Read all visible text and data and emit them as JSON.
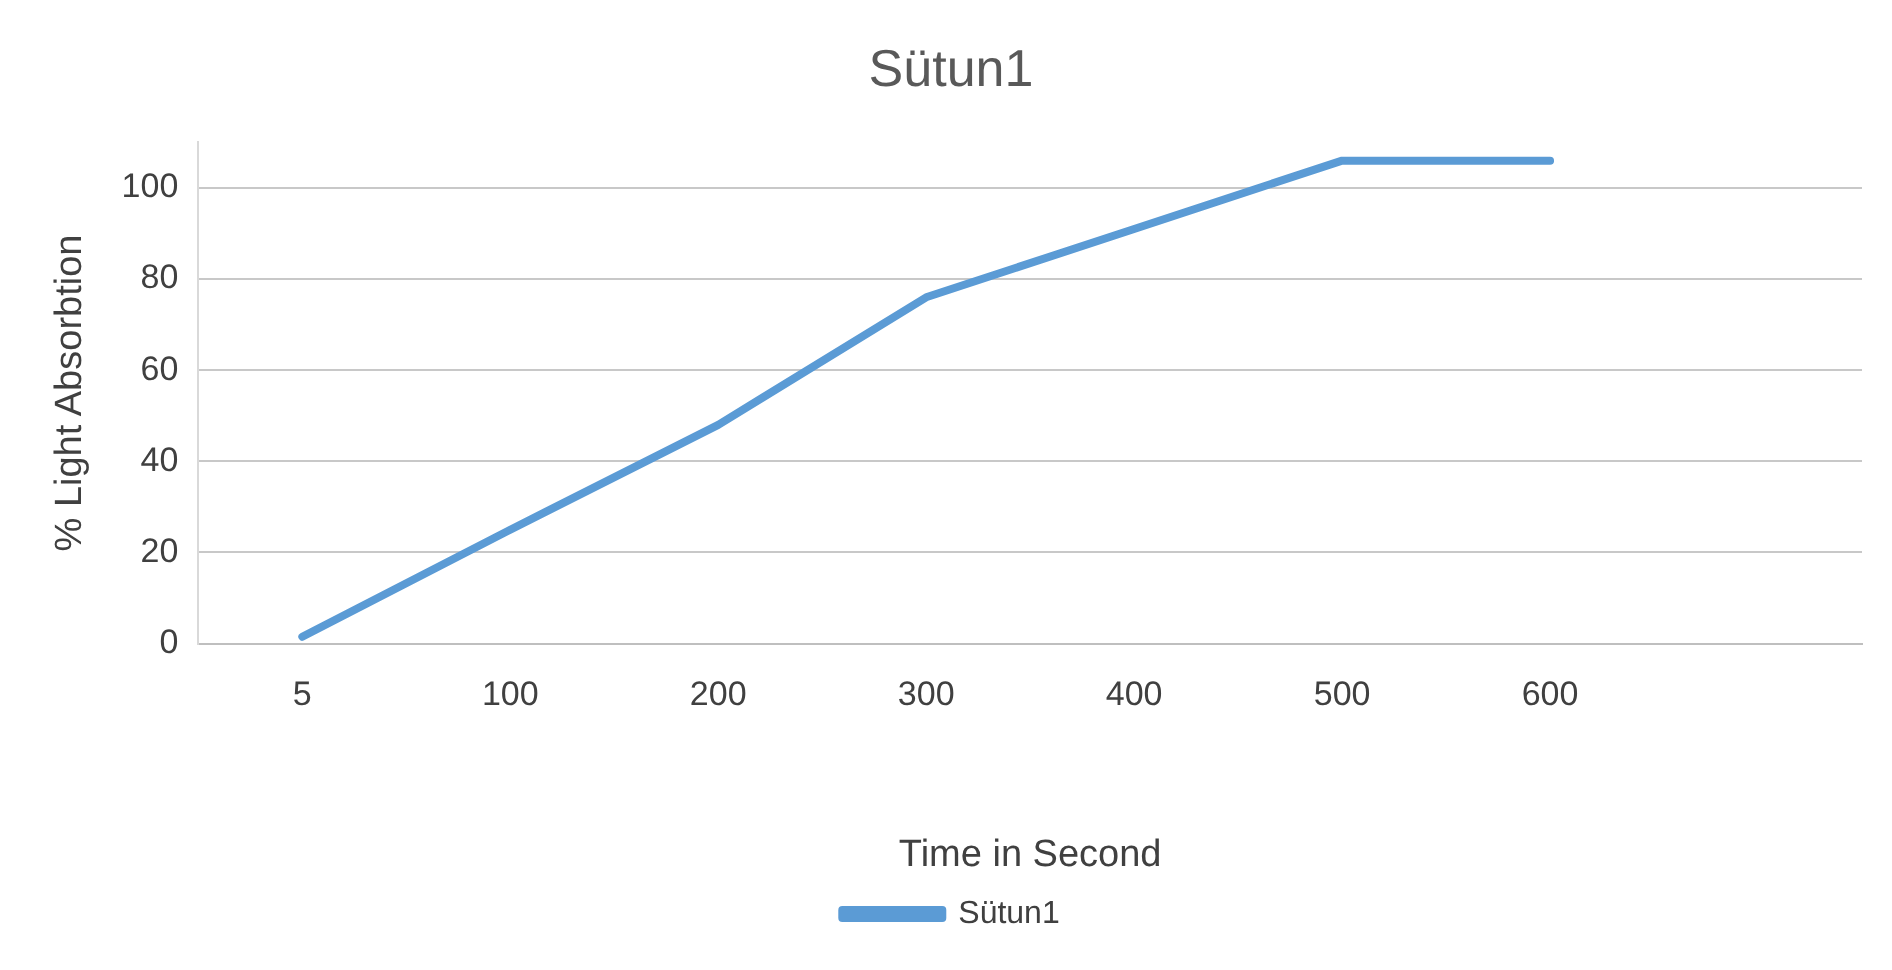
{
  "chart_data": {
    "type": "line",
    "title": "Sütun1",
    "xlabel": "Time in Second",
    "ylabel": "% Light Absorbtion",
    "categories": [
      "5",
      "100",
      "200",
      "300",
      "400",
      "500",
      "600",
      null
    ],
    "series": [
      {
        "name": "Sütun1",
        "color": "#5b9bd5",
        "values": [
          1.5,
          25,
          48,
          76,
          91,
          106,
          106,
          null
        ]
      }
    ],
    "ylim": [
      0,
      110
    ],
    "yticks": [
      0,
      20,
      40,
      60,
      80,
      100
    ],
    "grid": "y",
    "legend": "bottom",
    "marker": "none",
    "line_style": "solid"
  }
}
